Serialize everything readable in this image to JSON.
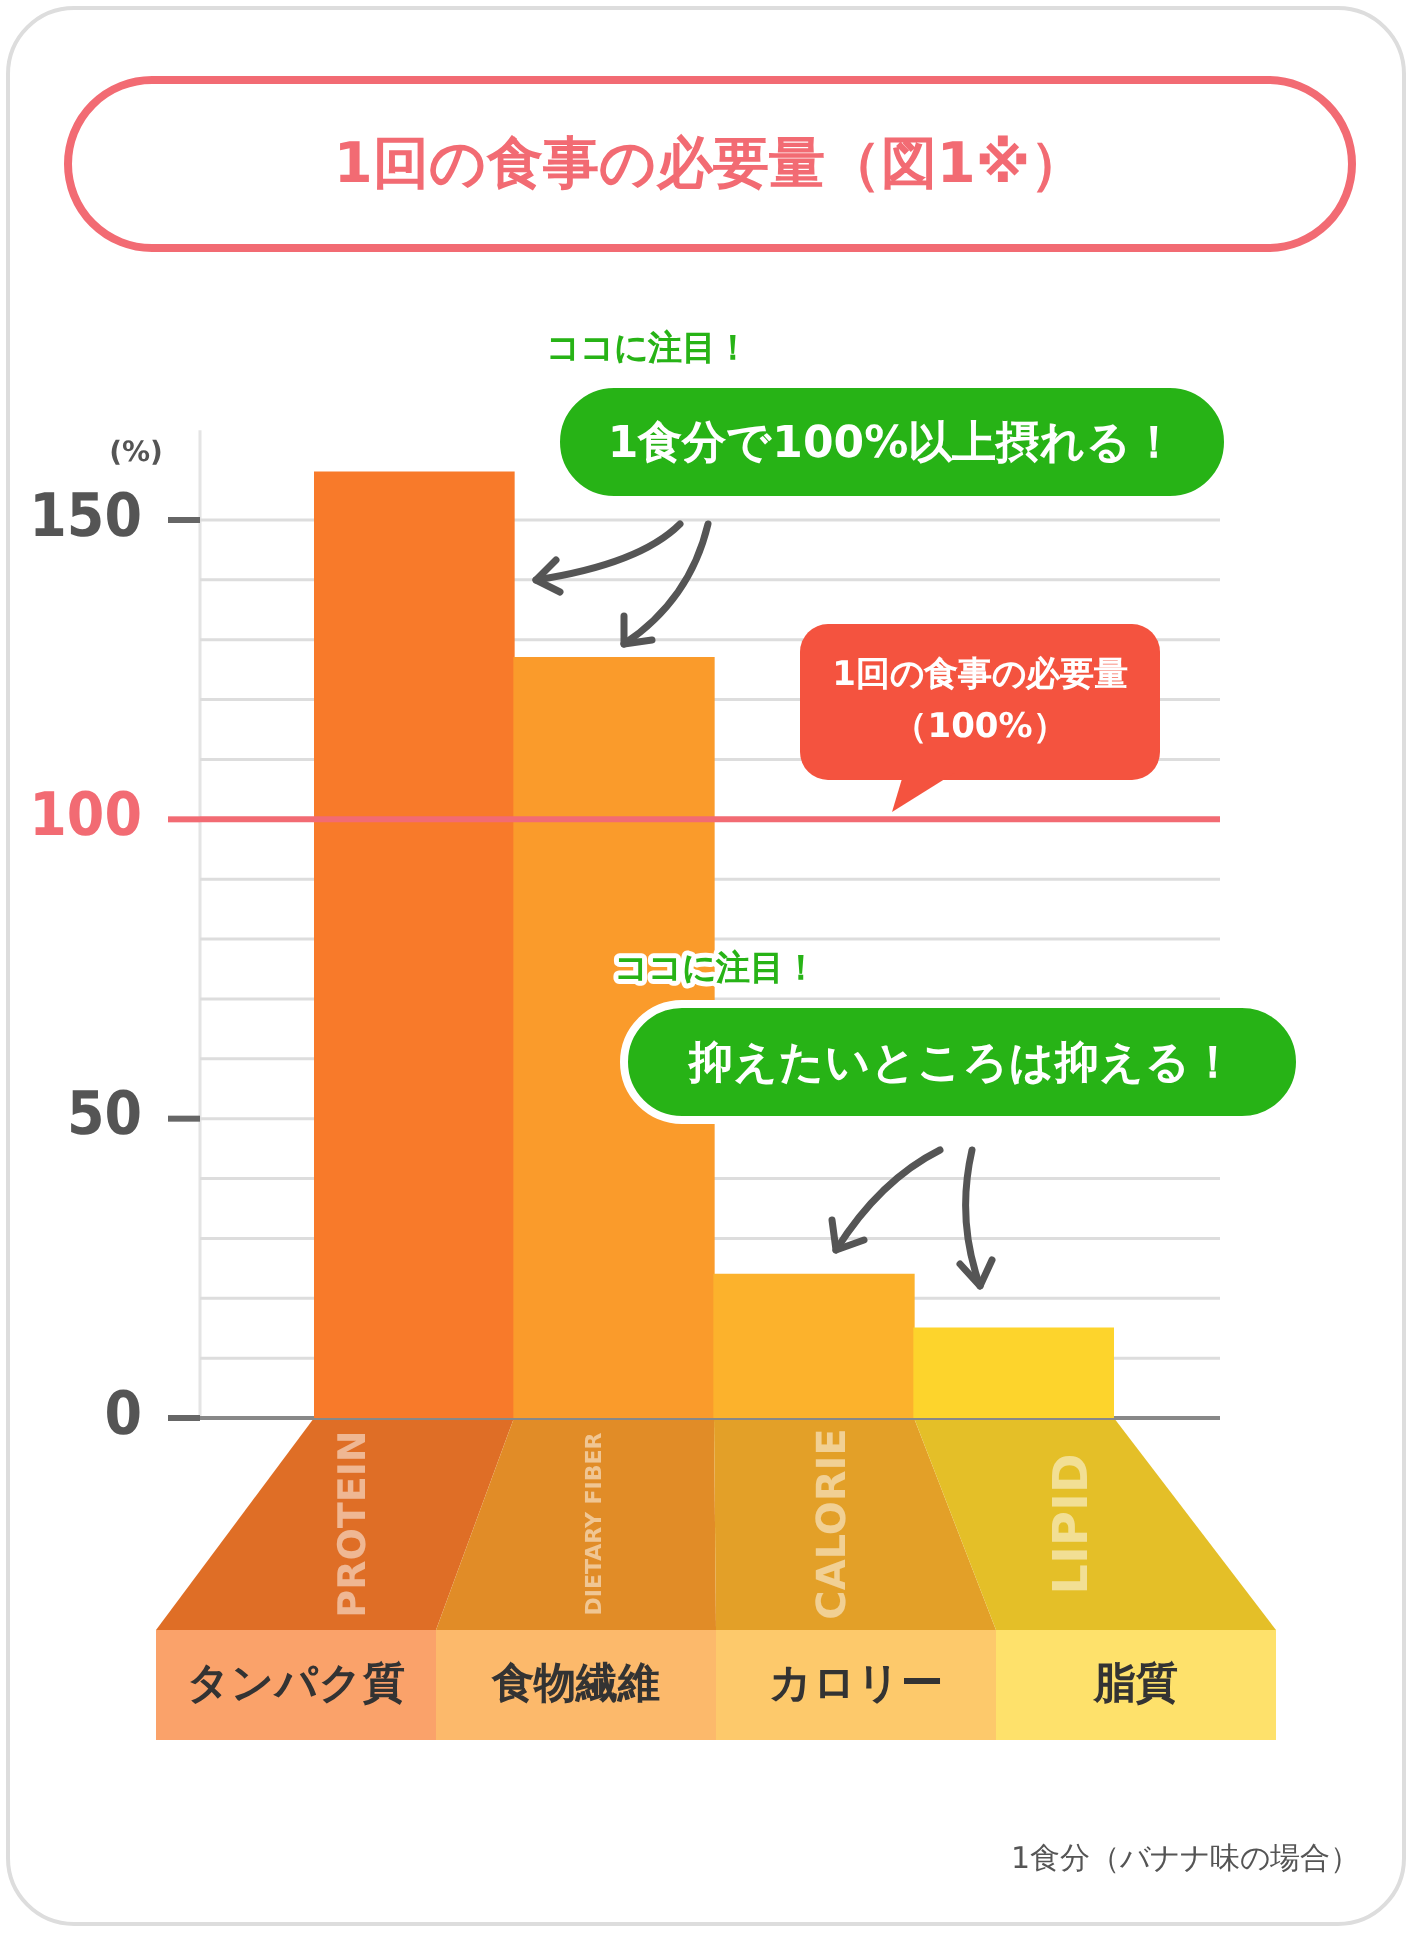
{
  "chart_data": {
    "type": "bar",
    "title": "1回の食事の必要量（図1※）",
    "ylabel": "(%)",
    "categories": [
      "タンパク質",
      "食物繊維",
      "カロリー",
      "脂質"
    ],
    "values": [
      158,
      127,
      24,
      15
    ],
    "colors": [
      "#f87a2a",
      "#fa9b2b",
      "#fcb22c",
      "#fdd42c"
    ],
    "ylim": [
      0,
      165
    ],
    "yticks": [
      0,
      {
        "value": 10,
        "label": null
      },
      {
        "value": 20,
        "label": null
      },
      {
        "value": 30,
        "label": null
      },
      {
        "value": 40,
        "label": null
      },
      50,
      {
        "value": 60,
        "label": null
      },
      {
        "value": 70,
        "label": null
      },
      {
        "value": 80,
        "label": null
      },
      {
        "value": 90,
        "label": null
      },
      100,
      {
        "value": 110,
        "label": null
      },
      {
        "value": 120,
        "label": null
      },
      {
        "value": 130,
        "label": null
      },
      {
        "value": 140,
        "label": null
      },
      150
    ],
    "grid": "y",
    "ref_lines": [
      {
        "axis": "y",
        "value": 100,
        "label": "1回の食事の必要量（100%）",
        "color": "#f26b73"
      }
    ],
    "annotations": [
      "ココに注目！",
      "1食分で100%以上摂れる！",
      "ココに注目！",
      "抑えたいところは抑える！",
      "1食分（バナナ味の場合）",
      "PROTEIN",
      "DIETARY FIBER",
      "CALORIE",
      "LIPID"
    ]
  }
}
